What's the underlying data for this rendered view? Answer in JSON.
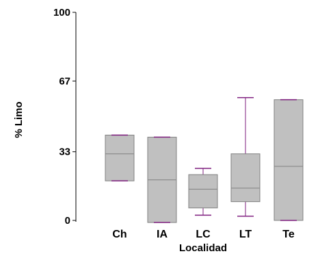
{
  "chart_data": {
    "type": "box",
    "title": "",
    "xlabel": "Localidad",
    "ylabel": "% Limo",
    "ylim": [
      0,
      100
    ],
    "yticks": [
      0,
      33,
      67,
      100
    ],
    "categories": [
      "Ch",
      "IA",
      "LC",
      "LT",
      "Te"
    ],
    "boxes": [
      {
        "category": "Ch",
        "min": 19,
        "q1": 19,
        "median": 32,
        "q3": 41,
        "max": 41
      },
      {
        "category": "IA",
        "min": -1,
        "q1": -1,
        "median": 19.5,
        "q3": 40,
        "max": 40
      },
      {
        "category": "LC",
        "min": 2.5,
        "q1": 6,
        "median": 15,
        "q3": 22,
        "max": 25
      },
      {
        "category": "LT",
        "min": 2,
        "q1": 9,
        "median": 15.5,
        "q3": 32,
        "max": 59
      },
      {
        "category": "Te",
        "min": 0,
        "q1": 0,
        "median": 26,
        "q3": 58,
        "max": 58
      }
    ],
    "grid": false,
    "legend": "none",
    "colors": {
      "box_fill": "#c0c0c0",
      "box_edge": "#808080",
      "whisker": "#7f1f7f",
      "axis": "#000000"
    }
  }
}
